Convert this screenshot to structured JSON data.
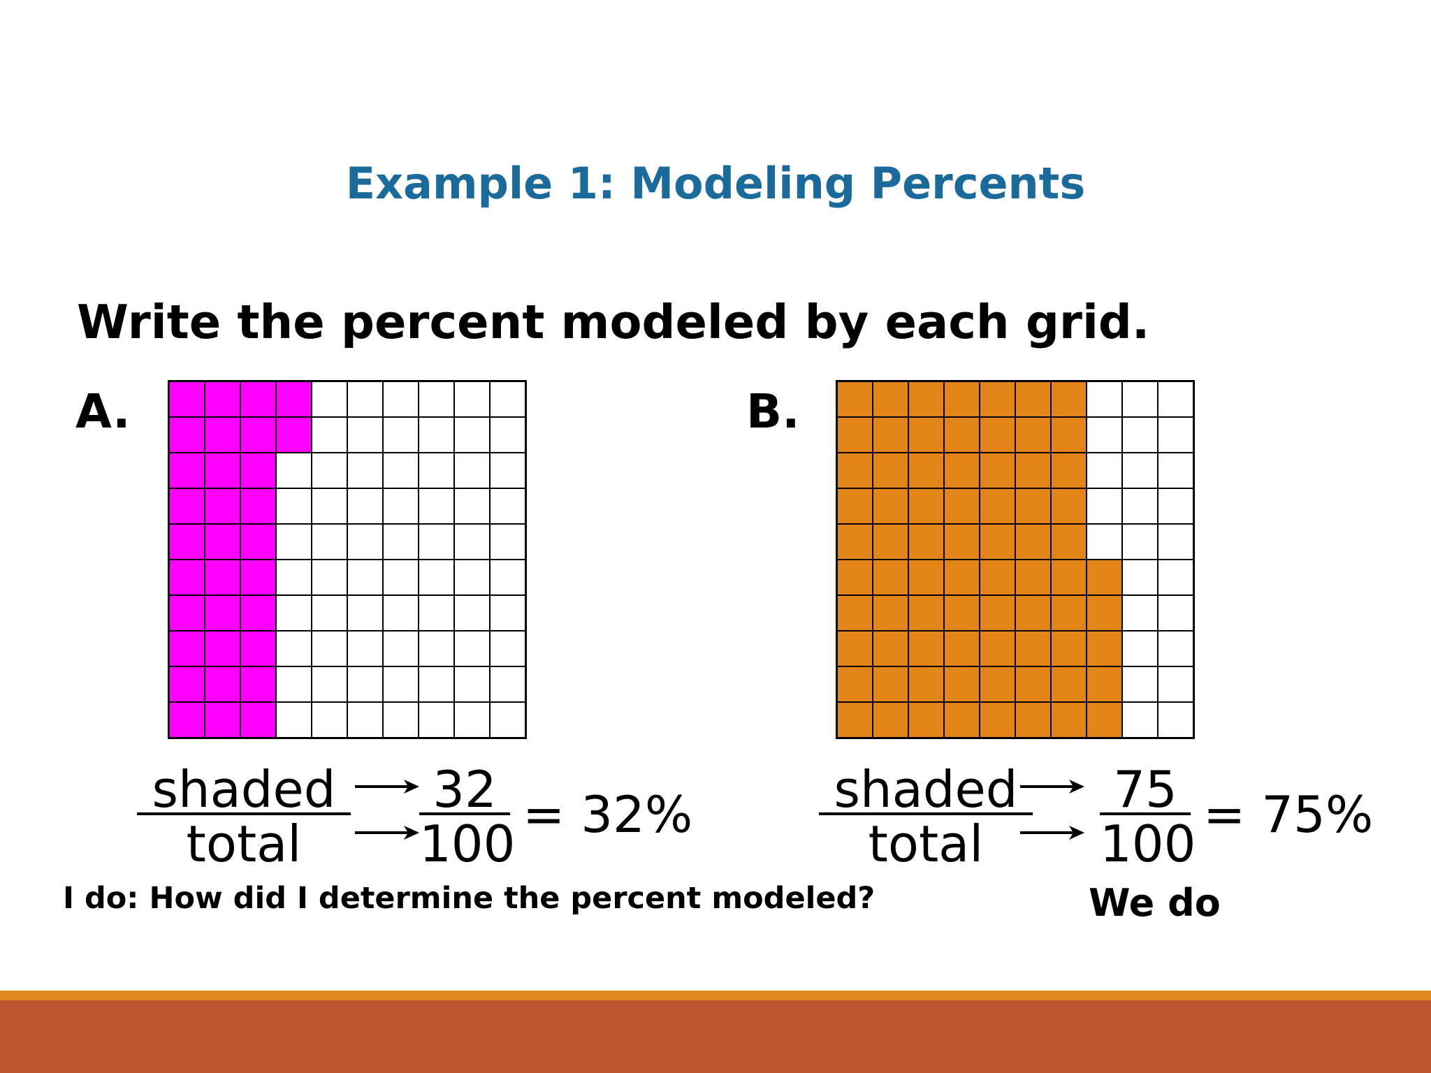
{
  "title": "Example 1: Modeling Percents",
  "instruction": "Write the percent modeled by each grid.",
  "colors": {
    "title": "#1a6a9c",
    "grid_a_fill": "#ff00ff",
    "grid_b_fill": "#e38418",
    "band_accent": "#e0891e",
    "band_main": "#bd5630"
  },
  "grid_a": {
    "label": "A.",
    "shaded_count": 32,
    "total": 100,
    "numerator_word": "shaded",
    "denominator_word": "total",
    "numerator": "32",
    "denominator": "100",
    "result": "= 32%"
  },
  "grid_b": {
    "label": "B.",
    "shaded_count": 75,
    "total": 100,
    "numerator_word": "shaded",
    "denominator_word": "total",
    "numerator": "75",
    "denominator": "100",
    "result": "= 75%"
  },
  "i_do_prompt": "I do:  How did I determine the percent modeled?",
  "we_do_label": "We do"
}
